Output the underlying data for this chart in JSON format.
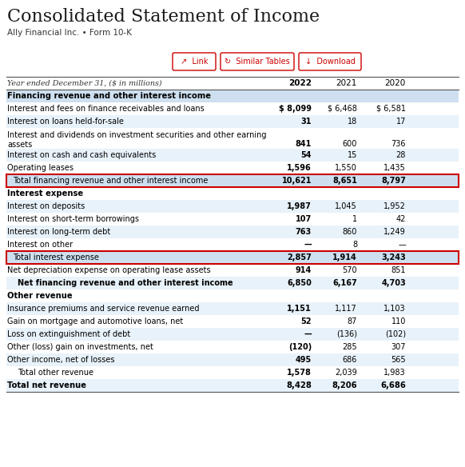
{
  "title": "Consolidated Statement of Income",
  "subtitle": "Ally Financial Inc. • Form 10-K",
  "header_label": "Year ended December 31, ($ in millions)",
  "columns": [
    "2022",
    "2021",
    "2020"
  ],
  "rows": [
    {
      "label": "Financing revenue and other interest income",
      "values": [
        "",
        "",
        ""
      ],
      "style": "section_header",
      "bg": "#cee0f0"
    },
    {
      "label": "Interest and fees on finance receivables and loans",
      "values": [
        "$ 8,099",
        "$ 6,468",
        "$ 6,581"
      ],
      "style": "normal",
      "bg": "#ffffff"
    },
    {
      "label": "Interest on loans held-for-sale",
      "values": [
        "31",
        "18",
        "17"
      ],
      "style": "normal",
      "bg": "#e8f2fa"
    },
    {
      "label": "Interest and dividends on investment securities and other earning\nassets",
      "values": [
        "841",
        "600",
        "736"
      ],
      "style": "normal_wrap",
      "bg": "#ffffff"
    },
    {
      "label": "Interest on cash and cash equivalents",
      "values": [
        "54",
        "15",
        "28"
      ],
      "style": "normal",
      "bg": "#e8f2fa"
    },
    {
      "label": "Operating leases",
      "values": [
        "1,596",
        "1,550",
        "1,435"
      ],
      "style": "normal",
      "bg": "#ffffff"
    },
    {
      "label": "Total financing revenue and other interest income",
      "values": [
        "10,621",
        "8,651",
        "8,797"
      ],
      "style": "total_highlighted",
      "bg": "#cee0f0",
      "red_border": true
    },
    {
      "label": "Interest expense",
      "values": [
        "",
        "",
        ""
      ],
      "style": "section_header",
      "bg": "#ffffff"
    },
    {
      "label": "Interest on deposits",
      "values": [
        "1,987",
        "1,045",
        "1,952"
      ],
      "style": "normal",
      "bg": "#e8f2fa"
    },
    {
      "label": "Interest on short-term borrowings",
      "values": [
        "107",
        "1",
        "42"
      ],
      "style": "normal",
      "bg": "#ffffff"
    },
    {
      "label": "Interest on long-term debt",
      "values": [
        "763",
        "860",
        "1,249"
      ],
      "style": "normal",
      "bg": "#e8f2fa"
    },
    {
      "label": "Interest on other",
      "values": [
        "—",
        "8",
        "—"
      ],
      "style": "normal",
      "bg": "#ffffff"
    },
    {
      "label": "Total interest expense",
      "values": [
        "2,857",
        "1,914",
        "3,243"
      ],
      "style": "total_highlighted",
      "bg": "#cee0f0",
      "red_border": true
    },
    {
      "label": "Net depreciation expense on operating lease assets",
      "values": [
        "914",
        "570",
        "851"
      ],
      "style": "normal",
      "bg": "#ffffff"
    },
    {
      "label": "Net financing revenue and other interest income",
      "values": [
        "6,850",
        "6,167",
        "4,703"
      ],
      "style": "indented_bold",
      "bg": "#e8f2fa"
    },
    {
      "label": "Other revenue",
      "values": [
        "",
        "",
        ""
      ],
      "style": "section_header",
      "bg": "#ffffff"
    },
    {
      "label": "Insurance premiums and service revenue earned",
      "values": [
        "1,151",
        "1,117",
        "1,103"
      ],
      "style": "normal",
      "bg": "#e8f2fa"
    },
    {
      "label": "Gain on mortgage and automotive loans, net",
      "values": [
        "52",
        "87",
        "110"
      ],
      "style": "normal",
      "bg": "#ffffff"
    },
    {
      "label": "Loss on extinguishment of debt",
      "values": [
        "—",
        "(136)",
        "(102)"
      ],
      "style": "normal",
      "bg": "#e8f2fa"
    },
    {
      "label": "Other (loss) gain on investments, net",
      "values": [
        "(120)",
        "285",
        "307"
      ],
      "style": "normal",
      "bg": "#ffffff"
    },
    {
      "label": "Other income, net of losses",
      "values": [
        "495",
        "686",
        "565"
      ],
      "style": "normal",
      "bg": "#e8f2fa"
    },
    {
      "label": "Total other revenue",
      "values": [
        "1,578",
        "2,039",
        "1,983"
      ],
      "style": "indented",
      "bg": "#ffffff"
    },
    {
      "label": "Total net revenue",
      "values": [
        "8,428",
        "8,206",
        "6,686"
      ],
      "style": "section_header",
      "bg": "#e8f2fa"
    }
  ]
}
